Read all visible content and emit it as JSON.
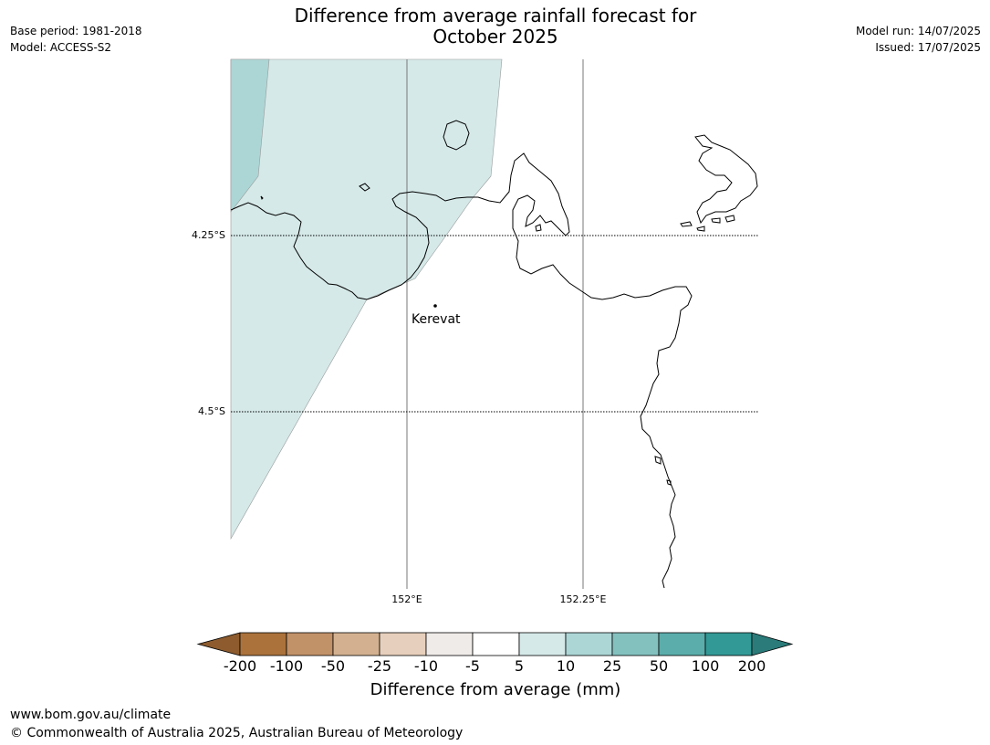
{
  "header": {
    "base_period": "Base period: 1981-2018",
    "model": "Model: ACCESS-S2",
    "model_run": "Model run: 14/07/2025",
    "issued": "Issued: 17/07/2025",
    "title_line1": "Difference from average rainfall forecast for",
    "title_line2": "October 2025"
  },
  "map": {
    "latitude_labels": [
      "4.25°S",
      "4.5°S"
    ],
    "longitude_labels": [
      "152°E",
      "152.25°E"
    ],
    "places": [
      {
        "name": "Kerevat"
      }
    ],
    "coastline_color": "#000000",
    "land_color": "#ffffff",
    "forecast_regions": [
      {
        "category": "5 to 10",
        "color": "#d5e9e8"
      },
      {
        "category": "10 to 25",
        "color": "#acd6d5"
      }
    ]
  },
  "colorbar": {
    "title": "Difference from average (mm)",
    "tick_labels": [
      "-200",
      "-100",
      "-50",
      "-25",
      "-10",
      "-5",
      "5",
      "10",
      "25",
      "50",
      "100",
      "200"
    ],
    "bins": [
      {
        "range": "< -200",
        "color": "#8d5b2e",
        "extend": "min"
      },
      {
        "range": "-200 to -100",
        "color": "#ab723b"
      },
      {
        "range": "-100 to -50",
        "color": "#c19168"
      },
      {
        "range": "-50 to -25",
        "color": "#d3b190"
      },
      {
        "range": "-25 to -10",
        "color": "#e6cfbc"
      },
      {
        "range": "-10 to -5",
        "color": "#efebe8"
      },
      {
        "range": "-5 to 5",
        "color": "#ffffff"
      },
      {
        "range": "5 to 10",
        "color": "#d5e9e8"
      },
      {
        "range": "10 to 25",
        "color": "#acd6d5"
      },
      {
        "range": "25 to 50",
        "color": "#83c1bf"
      },
      {
        "range": "50 to 100",
        "color": "#5aadab"
      },
      {
        "range": "100 to 200",
        "color": "#329996"
      },
      {
        "range": "> 200",
        "color": "#2a7b79",
        "extend": "max"
      }
    ]
  },
  "footer": {
    "url": "www.bom.gov.au/climate",
    "copyright": "© Commonwealth of Australia 2025, Australian Bureau of Meteorology"
  }
}
